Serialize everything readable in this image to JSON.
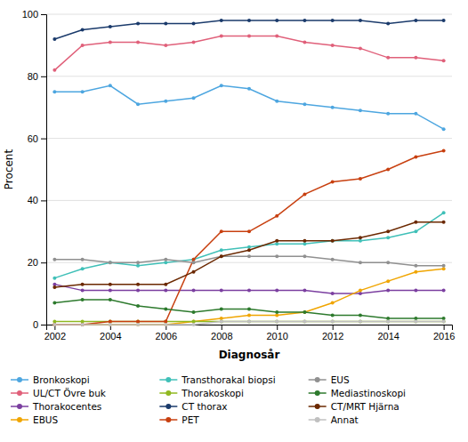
{
  "chart_data": {
    "type": "line",
    "xlabel": "Diagnosår",
    "ylabel": "Procent",
    "x": [
      2002,
      2003,
      2004,
      2005,
      2006,
      2007,
      2008,
      2009,
      2010,
      2011,
      2012,
      2013,
      2014,
      2015,
      2016
    ],
    "series": [
      {
        "name": "Bronkoskopi",
        "color": "#4da6e0",
        "values": [
          75,
          75,
          77,
          71,
          72,
          73,
          77,
          76,
          72,
          71,
          70,
          69,
          68,
          68,
          63
        ]
      },
      {
        "name": "UL/CT Övre buk",
        "color": "#e0607a",
        "values": [
          82,
          90,
          91,
          91,
          90,
          91,
          93,
          93,
          93,
          91,
          90,
          89,
          86,
          86,
          85
        ]
      },
      {
        "name": "Thorakocentes",
        "color": "#7b3fa0",
        "values": [
          13,
          11,
          11,
          11,
          11,
          11,
          11,
          11,
          11,
          11,
          10,
          10,
          11,
          11,
          11
        ]
      },
      {
        "name": "EBUS",
        "color": "#f0a500",
        "values": [
          0,
          0,
          0,
          0,
          0,
          1,
          2,
          3,
          3,
          4,
          7,
          11,
          14,
          17,
          18
        ]
      },
      {
        "name": "Transthorakal biopsi",
        "color": "#40c0b8",
        "values": [
          15,
          18,
          20,
          19,
          20,
          21,
          24,
          25,
          26,
          26,
          27,
          27,
          28,
          30,
          36
        ]
      },
      {
        "name": "Thorakoskopi",
        "color": "#90b820",
        "values": [
          1,
          1,
          1,
          1,
          1,
          1,
          1,
          1,
          1,
          1,
          1,
          1,
          1,
          1,
          1
        ]
      },
      {
        "name": "CT thorax",
        "color": "#1a3a6b",
        "values": [
          92,
          95,
          96,
          97,
          97,
          97,
          98,
          98,
          98,
          98,
          98,
          98,
          97,
          98,
          98
        ]
      },
      {
        "name": "PET",
        "color": "#c84010",
        "values": [
          0,
          0,
          1,
          1,
          1,
          21,
          30,
          30,
          35,
          42,
          46,
          47,
          50,
          54,
          56
        ]
      },
      {
        "name": "EUS",
        "color": "#909090",
        "values": [
          21,
          21,
          20,
          20,
          21,
          20,
          22,
          22,
          22,
          22,
          21,
          20,
          20,
          19,
          19
        ]
      },
      {
        "name": "Mediastinoskopi",
        "color": "#2d7a2d",
        "values": [
          7,
          8,
          8,
          6,
          5,
          4,
          5,
          5,
          4,
          4,
          3,
          3,
          2,
          2,
          2
        ]
      },
      {
        "name": "CT/MRT Hjärna",
        "color": "#6b2800",
        "values": [
          12,
          13,
          13,
          13,
          13,
          17,
          22,
          24,
          27,
          27,
          27,
          28,
          30,
          33,
          33
        ]
      },
      {
        "name": "Annat",
        "color": "#c0c0c0",
        "values": [
          0,
          0,
          0,
          0,
          0,
          0,
          1,
          1,
          1,
          1,
          1,
          1,
          1,
          1,
          1
        ]
      }
    ],
    "xlim": [
      2001.7,
      2016.3
    ],
    "xticks": [
      2002,
      2004,
      2006,
      2008,
      2010,
      2012,
      2014,
      2016
    ],
    "ylim": [
      0,
      100
    ],
    "yticks": [
      0,
      20,
      40,
      60,
      80,
      100
    ],
    "grid": true,
    "marker": "circle",
    "legend": "bottom"
  }
}
